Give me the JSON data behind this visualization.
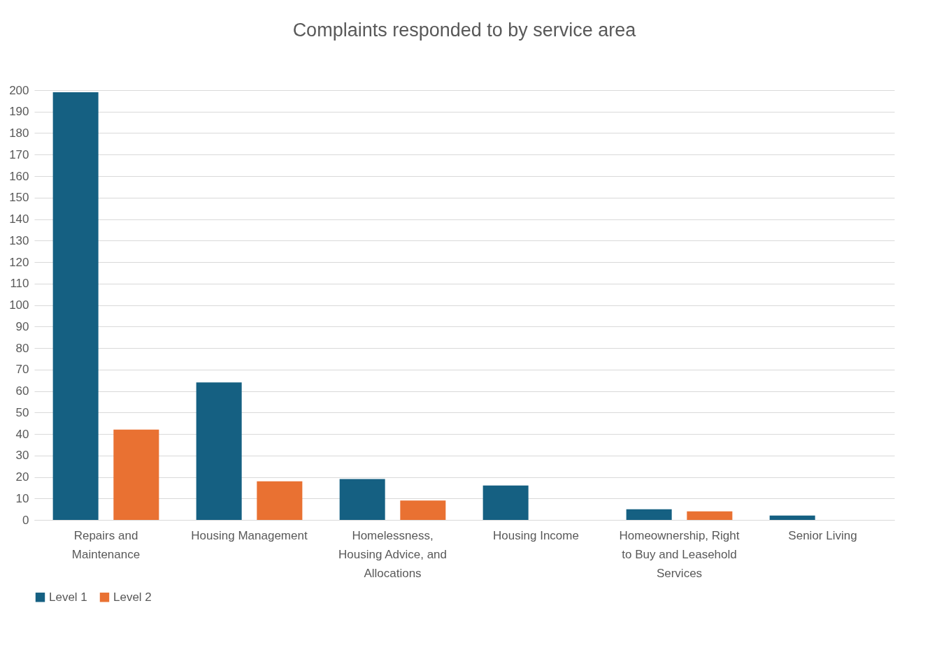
{
  "chart_data": {
    "type": "bar",
    "title": "Complaints responded to by service area",
    "categories": [
      "Repairs and Maintenance",
      "Housing Management",
      "Homelessness, Housing Advice, and Allocations",
      "Housing Income",
      "Homeownership, Right to Buy and Leasehold Services",
      "Senior Living"
    ],
    "series": [
      {
        "name": "Level 1",
        "color": "#156082",
        "values": [
          199,
          64,
          19,
          16,
          5,
          2
        ]
      },
      {
        "name": "Level 2",
        "color": "#e97132",
        "values": [
          42,
          18,
          9,
          0,
          4,
          0
        ]
      }
    ],
    "ylim": [
      0,
      200
    ],
    "yticks": [
      0,
      10,
      20,
      30,
      40,
      50,
      60,
      70,
      80,
      90,
      100,
      110,
      120,
      130,
      140,
      150,
      160,
      170,
      180,
      190,
      200
    ],
    "grid": "y",
    "legend": "bottom"
  }
}
